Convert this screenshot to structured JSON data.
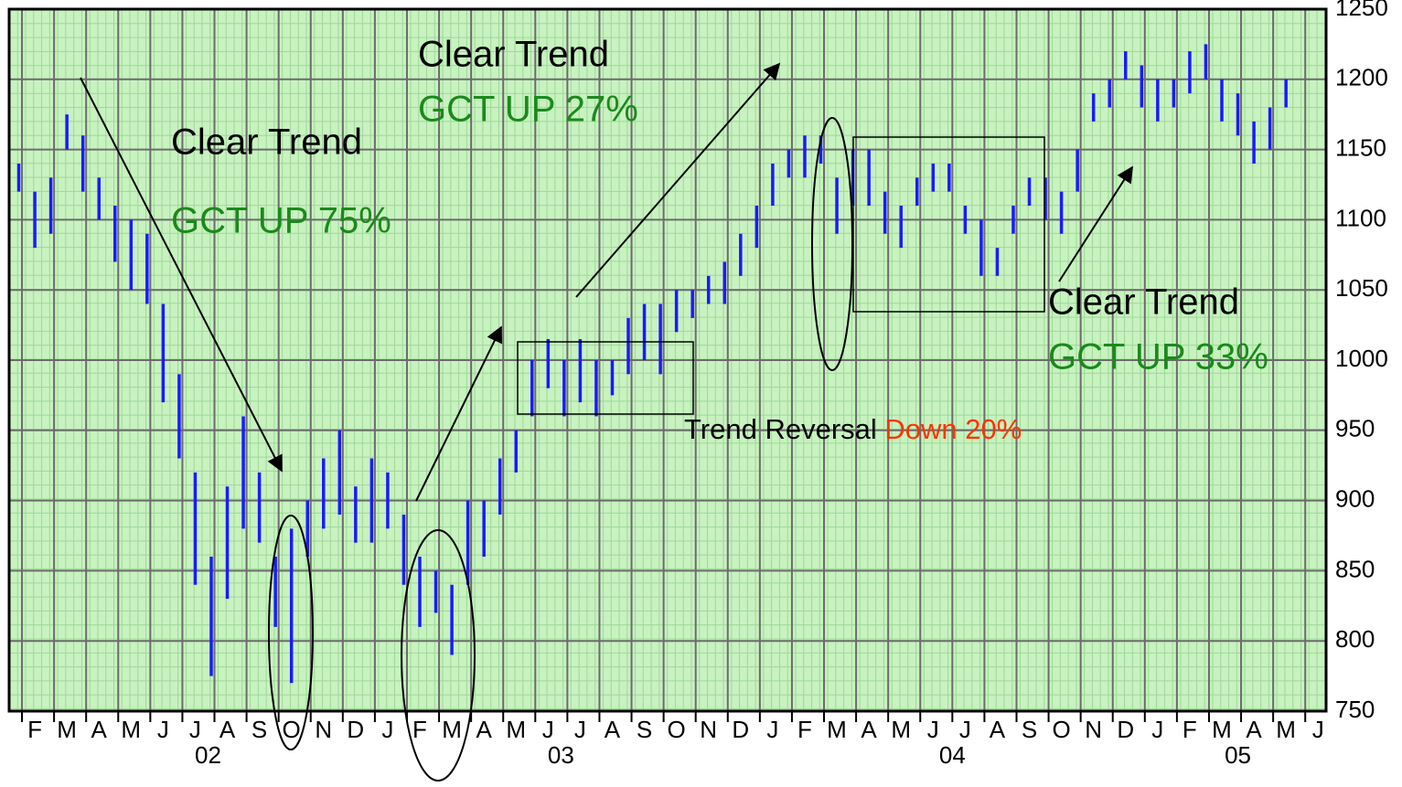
{
  "chart_data": {
    "type": "range-bar",
    "color": "#1a1aff",
    "xlim": [
      0.6,
      41.65
    ],
    "ylim": [
      750,
      1250
    ],
    "yticks": [
      750,
      800,
      850,
      900,
      950,
      1000,
      1050,
      1100,
      1150,
      1200,
      1250
    ],
    "xticks": [
      {
        "value": 1,
        "label": "F"
      },
      {
        "value": 2,
        "label": "M"
      },
      {
        "value": 3,
        "label": "A"
      },
      {
        "value": 4,
        "label": "M"
      },
      {
        "value": 5,
        "label": "J"
      },
      {
        "value": 6,
        "label": "J"
      },
      {
        "value": 7,
        "label": "A"
      },
      {
        "value": 8,
        "label": "S"
      },
      {
        "value": 9,
        "label": "O"
      },
      {
        "value": 10,
        "label": "N"
      },
      {
        "value": 11,
        "label": "D"
      },
      {
        "value": 12,
        "label": "J"
      },
      {
        "value": 13,
        "label": "F"
      },
      {
        "value": 14,
        "label": "M"
      },
      {
        "value": 15,
        "label": "A"
      },
      {
        "value": 16,
        "label": "M"
      },
      {
        "value": 17,
        "label": "J"
      },
      {
        "value": 18,
        "label": "J"
      },
      {
        "value": 19,
        "label": "A"
      },
      {
        "value": 20,
        "label": "S"
      },
      {
        "value": 21,
        "label": "O"
      },
      {
        "value": 22,
        "label": "N"
      },
      {
        "value": 23,
        "label": "D"
      },
      {
        "value": 24,
        "label": "J"
      },
      {
        "value": 25,
        "label": "F"
      },
      {
        "value": 26,
        "label": "M"
      },
      {
        "value": 27,
        "label": "A"
      },
      {
        "value": 28,
        "label": "M"
      },
      {
        "value": 29,
        "label": "J"
      },
      {
        "value": 30,
        "label": "J"
      },
      {
        "value": 31,
        "label": "A"
      },
      {
        "value": 32,
        "label": "S"
      },
      {
        "value": 33,
        "label": "O"
      },
      {
        "value": 34,
        "label": "N"
      },
      {
        "value": 35,
        "label": "D"
      },
      {
        "value": 36,
        "label": "J"
      },
      {
        "value": 37,
        "label": "F"
      },
      {
        "value": 38,
        "label": "M"
      },
      {
        "value": 39,
        "label": "A"
      },
      {
        "value": 40,
        "label": "M"
      },
      {
        "value": 41,
        "label": "J"
      }
    ],
    "year_labels": [
      {
        "value": 6.8,
        "label": "02"
      },
      {
        "value": 17.8,
        "label": "03"
      },
      {
        "value": 30,
        "label": "04"
      },
      {
        "value": 38.9,
        "label": "05"
      }
    ],
    "grid": true,
    "x": [
      0.9,
      1.4,
      1.9,
      2.4,
      2.9,
      3.4,
      3.9,
      4.4,
      4.9,
      5.4,
      5.9,
      6.4,
      6.9,
      7.4,
      7.9,
      8.4,
      8.9,
      9.4,
      9.9,
      10.4,
      10.9,
      11.4,
      11.9,
      12.4,
      12.9,
      13.4,
      13.9,
      14.4,
      14.9,
      15.4,
      15.9,
      16.4,
      16.9,
      17.4,
      17.9,
      18.4,
      18.9,
      19.4,
      19.9,
      20.4,
      20.9,
      21.4,
      21.9,
      22.4,
      22.9,
      23.4,
      23.9,
      24.4,
      24.9,
      25.4,
      25.9,
      26.4,
      26.9,
      27.4,
      27.9,
      28.4,
      28.9,
      29.4,
      29.9,
      30.4,
      30.9,
      31.4,
      31.9,
      32.4,
      32.9,
      33.4,
      33.9,
      34.4,
      34.9,
      35.4,
      35.9,
      36.4,
      36.9,
      37.4,
      37.9,
      38.4,
      38.9,
      39.4,
      39.9,
      40.4
    ],
    "high": [
      1140,
      1120,
      1130,
      1175,
      1160,
      1130,
      1110,
      1100,
      1090,
      1040,
      990,
      920,
      860,
      910,
      960,
      920,
      860,
      880,
      900,
      930,
      950,
      910,
      930,
      920,
      890,
      860,
      850,
      840,
      900,
      900,
      930,
      950,
      1000,
      1015,
      1000,
      1015,
      1000,
      1000,
      1030,
      1040,
      1040,
      1050,
      1050,
      1060,
      1070,
      1090,
      1110,
      1140,
      1150,
      1160,
      1160,
      1130,
      1150,
      1150,
      1120,
      1110,
      1130,
      1140,
      1140,
      1110,
      1100,
      1080,
      1110,
      1130,
      1130,
      1120,
      1150,
      1190,
      1200,
      1220,
      1210,
      1200,
      1200,
      1220,
      1225,
      1200,
      1190,
      1170,
      1180,
      1200
    ],
    "low": [
      1120,
      1080,
      1090,
      1150,
      1120,
      1100,
      1070,
      1050,
      1040,
      970,
      930,
      840,
      775,
      830,
      880,
      870,
      810,
      770,
      860,
      880,
      890,
      870,
      870,
      880,
      840,
      810,
      820,
      790,
      840,
      860,
      890,
      920,
      960,
      980,
      960,
      970,
      960,
      975,
      990,
      1000,
      990,
      1020,
      1030,
      1040,
      1040,
      1060,
      1080,
      1110,
      1130,
      1130,
      1140,
      1090,
      1110,
      1110,
      1090,
      1080,
      1110,
      1120,
      1120,
      1090,
      1060,
      1060,
      1090,
      1110,
      1100,
      1090,
      1120,
      1170,
      1180,
      1200,
      1180,
      1170,
      1180,
      1190,
      1200,
      1170,
      1160,
      1140,
      1150,
      1180
    ],
    "annotations": [
      {
        "text": "Clear Trend",
        "color": "#000000"
      },
      {
        "text": "GCT UP 27%",
        "color": "#1a8a1a"
      },
      {
        "text": "Clear Trend",
        "color": "#000000"
      },
      {
        "text": "GCT UP 75%",
        "color": "#1a8a1a"
      },
      {
        "text": "Clear Trend",
        "color": "#000000"
      },
      {
        "text": "GCT UP 33%",
        "color": "#1a8a1a"
      }
    ],
    "reversal_label": {
      "text": "Trend Reversal ",
      "highlight": "Down 20%",
      "color": "#000000",
      "highlight_color": "#ff3300"
    }
  }
}
